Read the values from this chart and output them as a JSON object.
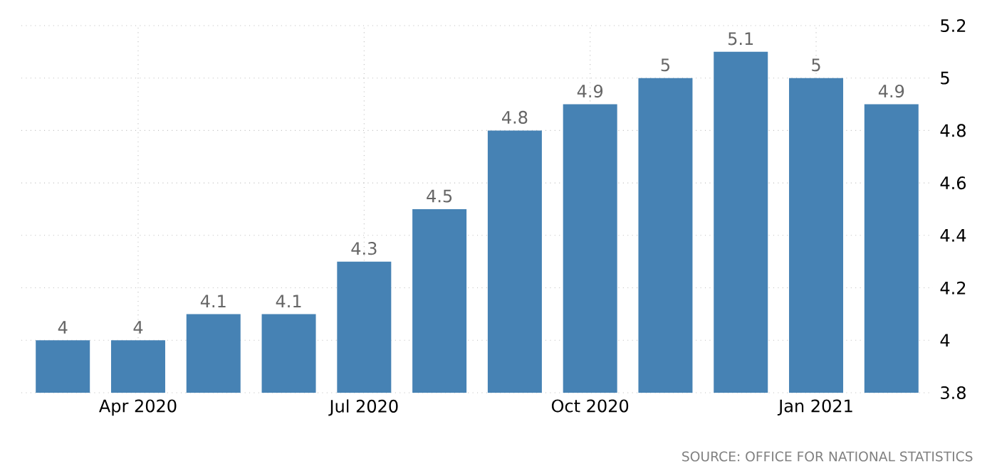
{
  "chart_data": {
    "type": "bar",
    "categories": [
      null,
      "Apr 2020",
      null,
      null,
      "Jul 2020",
      null,
      null,
      "Oct 2020",
      null,
      null,
      "Jan 2021",
      null
    ],
    "values": [
      4,
      4,
      4.1,
      4.1,
      4.3,
      4.5,
      4.8,
      4.9,
      5,
      5.1,
      5,
      4.9
    ],
    "color": "#4682b4",
    "ylim": [
      3.8,
      5.2
    ],
    "yticks": [
      3.8,
      4,
      4.2,
      4.4,
      4.6,
      4.8,
      5,
      5.2
    ],
    "grid": true,
    "data_labels": true,
    "annotations": [
      "SOURCE: OFFICE FOR NATIONAL STATISTICS"
    ]
  }
}
